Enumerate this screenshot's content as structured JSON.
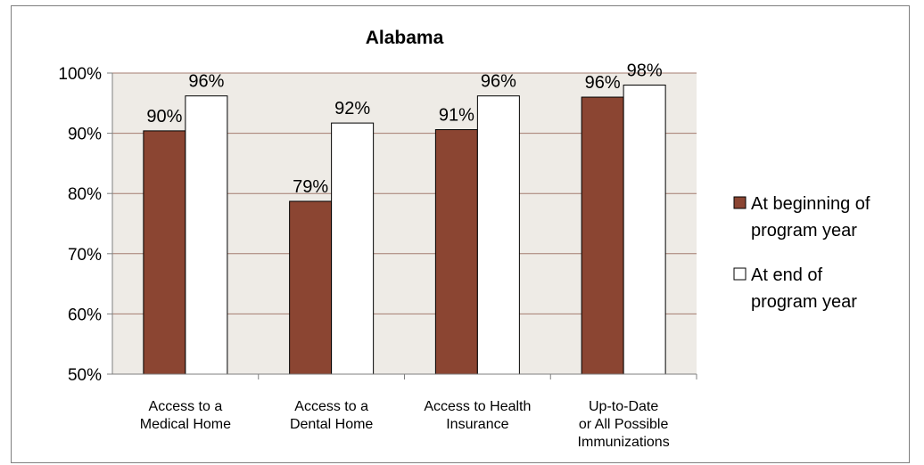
{
  "chart_data": {
    "type": "bar",
    "title": "Alabama",
    "categories": [
      [
        "Access to a",
        "Medical Home"
      ],
      [
        "Access to a",
        "Dental Home"
      ],
      [
        "Access to Health",
        "Insurance"
      ],
      [
        "Up-to-Date",
        "or All Possible",
        "Immunizations"
      ]
    ],
    "series": [
      {
        "name": "At beginning of program year",
        "legend_lines": [
          "At beginning of",
          "program year"
        ],
        "values": [
          90.4,
          78.7,
          90.6,
          96.0
        ],
        "labels": [
          "90%",
          "79%",
          "91%",
          "96%"
        ],
        "color": "#8b4532"
      },
      {
        "name": "At end of program year",
        "legend_lines": [
          "At end of",
          "program year"
        ],
        "values": [
          96.2,
          91.7,
          96.2,
          98.0
        ],
        "labels": [
          "96%",
          "92%",
          "96%",
          "98%"
        ],
        "color": "#ffffff"
      }
    ],
    "ylim": [
      50,
      100
    ],
    "yticks": [
      "50%",
      "60%",
      "70%",
      "80%",
      "90%",
      "100%"
    ],
    "ytick_values": [
      50,
      60,
      70,
      80,
      90,
      100
    ],
    "grid": true,
    "plot_background": "#eeebe6",
    "grid_color": "#a47d70",
    "legend_position": "right",
    "xlabel": "",
    "ylabel": ""
  }
}
